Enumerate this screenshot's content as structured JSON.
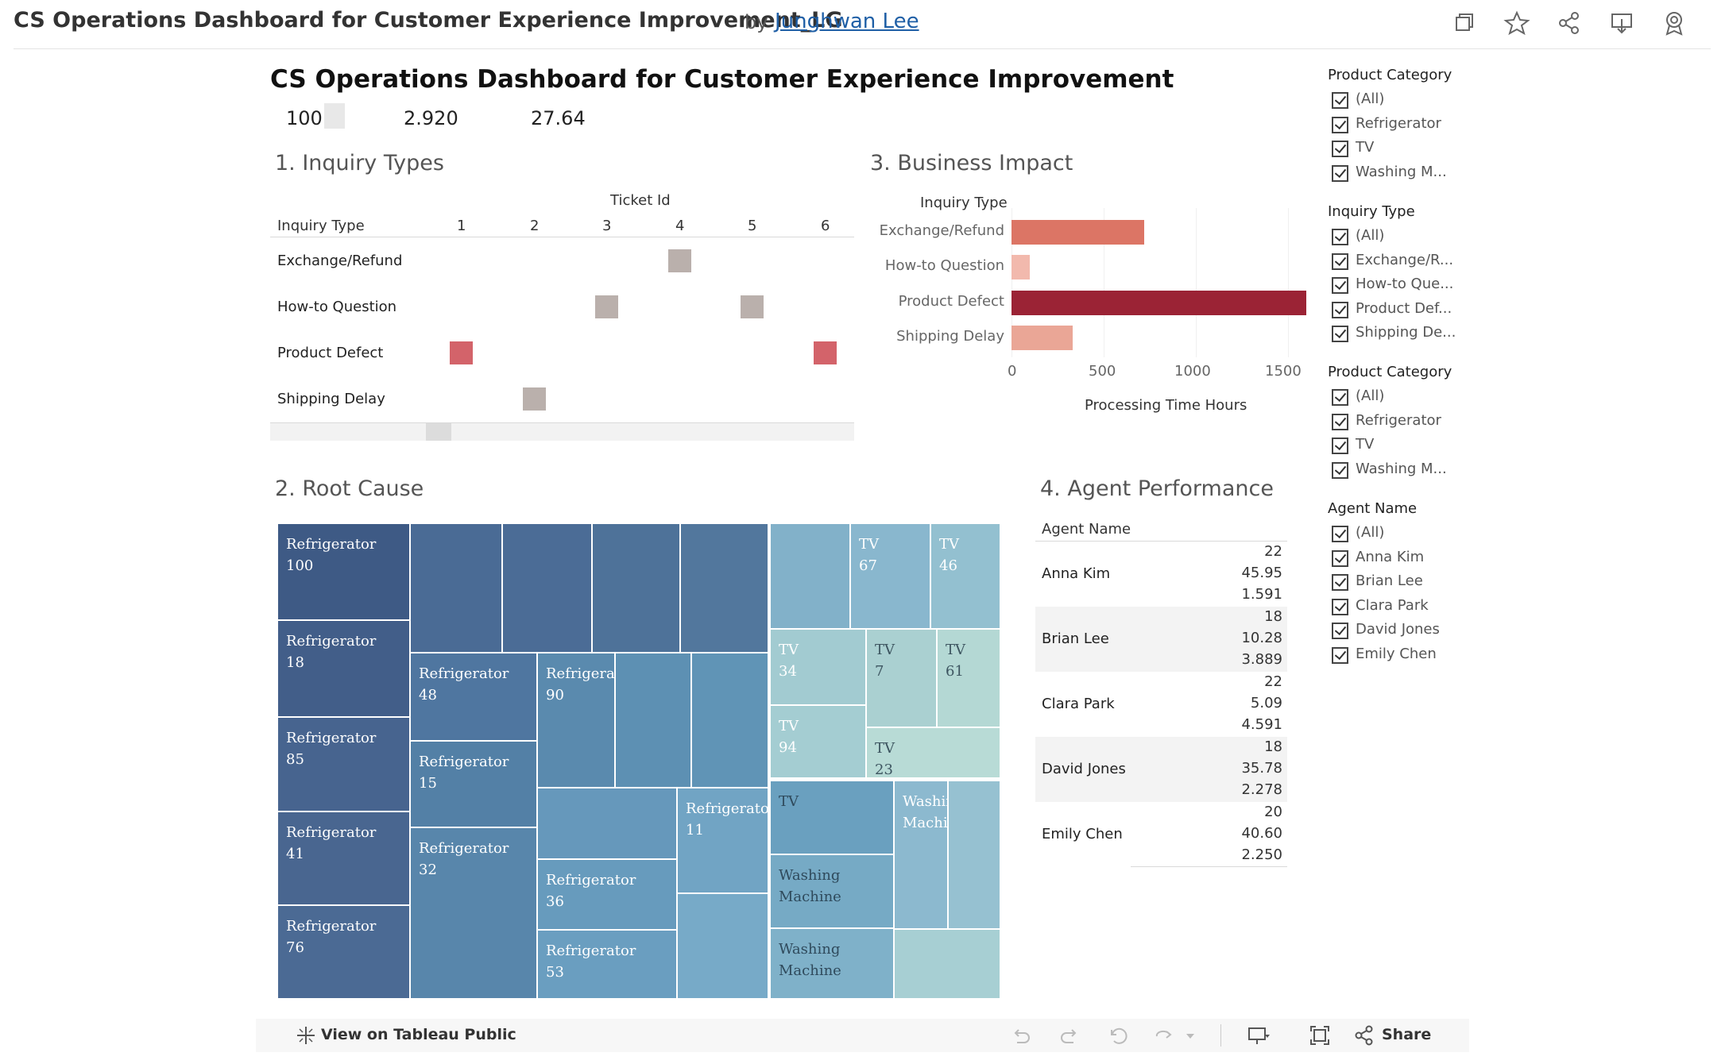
{
  "header": {
    "title": "CS Operations Dashboard for Customer Experience Improvement_LG",
    "by": "by",
    "author": "Junghwan Lee",
    "icons": [
      "copy-icon",
      "star-icon",
      "share-icon",
      "download-icon",
      "badge-icon"
    ]
  },
  "dashboard": {
    "title": "CS Operations Dashboard for Customer Experience Improvement",
    "kpis": [
      "100",
      "2.920",
      "27.64"
    ]
  },
  "inquiry_types": {
    "title": "1. Inquiry Types",
    "column_header": "Ticket Id",
    "row_header": "Inquiry Type",
    "ticket_ids": [
      "1",
      "2",
      "3",
      "4",
      "5",
      "6"
    ],
    "rows": [
      "Exchange/Refund",
      "How-to Question",
      "Product Defect",
      "Shipping Delay"
    ],
    "marks": [
      {
        "row": 0,
        "ticket": 4,
        "color": "#bab0ac"
      },
      {
        "row": 1,
        "ticket": 3,
        "color": "#bab0ac"
      },
      {
        "row": 1,
        "ticket": 5,
        "color": "#bab0ac"
      },
      {
        "row": 2,
        "ticket": 1,
        "color": "#d3636a"
      },
      {
        "row": 2,
        "ticket": 6,
        "color": "#d3636a"
      },
      {
        "row": 3,
        "ticket": 2,
        "color": "#bab0ac"
      }
    ]
  },
  "business_impact": {
    "title": "3. Business Impact",
    "axis_title": "Inquiry Type",
    "xlabel": "Processing Time Hours",
    "ticks": [
      "0",
      "500",
      "1000",
      "1500"
    ]
  },
  "chart_data": {
    "type": "bar",
    "orientation": "horizontal",
    "categories": [
      "Exchange/Refund",
      "How-to Question",
      "Product Defect",
      "Shipping Delay"
    ],
    "values": [
      720,
      100,
      1600,
      330
    ],
    "colors": [
      "#dc7565",
      "#f2b9ad",
      "#9b2335",
      "#eaa696"
    ],
    "xlabel": "Processing Time Hours",
    "ylabel": "Inquiry Type",
    "xlim": [
      0,
      1600
    ]
  },
  "root_cause": {
    "title": "2. Root Cause",
    "tiles": [
      {
        "l1": "Refrigerator",
        "l2": "100"
      },
      {
        "l1": "Refrigerator",
        "l2": "18"
      },
      {
        "l1": "Refrigerator",
        "l2": "85"
      },
      {
        "l1": "Refrigerator",
        "l2": "41"
      },
      {
        "l1": "Refrigerator",
        "l2": "76"
      },
      {
        "l1": "",
        "l2": ""
      },
      {
        "l1": "",
        "l2": ""
      },
      {
        "l1": "",
        "l2": ""
      },
      {
        "l1": "",
        "l2": ""
      },
      {
        "l1": "Refrigerator",
        "l2": "48"
      },
      {
        "l1": "Refrigerator",
        "l2": "15"
      },
      {
        "l1": "Refrigerator",
        "l2": "32"
      },
      {
        "l1": "Refrigerator",
        "l2": "90"
      },
      {
        "l1": "",
        "l2": ""
      },
      {
        "l1": "",
        "l2": ""
      },
      {
        "l1": "",
        "l2": ""
      },
      {
        "l1": "Refrigerator",
        "l2": "36"
      },
      {
        "l1": "Refrigerator",
        "l2": "53"
      },
      {
        "l1": "Refrigerator",
        "l2": "11"
      },
      {
        "l1": "",
        "l2": ""
      },
      {
        "l1": "",
        "l2": ""
      },
      {
        "l1": "TV",
        "l2": "67"
      },
      {
        "l1": "TV",
        "l2": "46"
      },
      {
        "l1": "TV",
        "l2": "34"
      },
      {
        "l1": "TV",
        "l2": "7"
      },
      {
        "l1": "TV",
        "l2": "61"
      },
      {
        "l1": "TV",
        "l2": "94"
      },
      {
        "l1": "TV",
        "l2": "23"
      },
      {
        "l1": "TV",
        "l2": ""
      },
      {
        "l1": "Washing",
        "l2": "Machine"
      },
      {
        "l1": "Washing",
        "l2": "Machine"
      },
      {
        "l1": "Washing",
        "l2": "Machine"
      },
      {
        "l1": "",
        "l2": ""
      },
      {
        "l1": "",
        "l2": ""
      },
      {
        "l1": "Washing",
        "l2": "Machine"
      }
    ]
  },
  "agent_performance": {
    "title": "4. Agent Performance",
    "column_header": "Agent Name",
    "rows": [
      {
        "name": "Anna Kim",
        "v1": "22",
        "v2": "45.95",
        "v3": "1.591"
      },
      {
        "name": "Brian Lee",
        "v1": "18",
        "v2": "10.28",
        "v3": "3.889"
      },
      {
        "name": "Clara Park",
        "v1": "22",
        "v2": "5.09",
        "v3": "4.591"
      },
      {
        "name": "David Jones",
        "v1": "18",
        "v2": "35.78",
        "v3": "2.278"
      },
      {
        "name": "Emily Chen",
        "v1": "20",
        "v2": "40.60",
        "v3": "2.250"
      }
    ]
  },
  "filters": [
    {
      "title": "Product Category",
      "items": [
        "(All)",
        "Refrigerator",
        "TV",
        "Washing M..."
      ]
    },
    {
      "title": "Inquiry Type",
      "items": [
        "(All)",
        "Exchange/R...",
        "How-to Que...",
        "Product Def...",
        "Shipping De..."
      ]
    },
    {
      "title": "Product Category",
      "items": [
        "(All)",
        "Refrigerator",
        "TV",
        "Washing M..."
      ]
    },
    {
      "title": "Agent Name",
      "items": [
        "(All)",
        "Anna Kim",
        "Brian Lee",
        "Clara Park",
        "David Jones",
        "Emily Chen"
      ]
    }
  ],
  "footer": {
    "view_label": "View on Tableau Public",
    "share_label": "Share"
  }
}
